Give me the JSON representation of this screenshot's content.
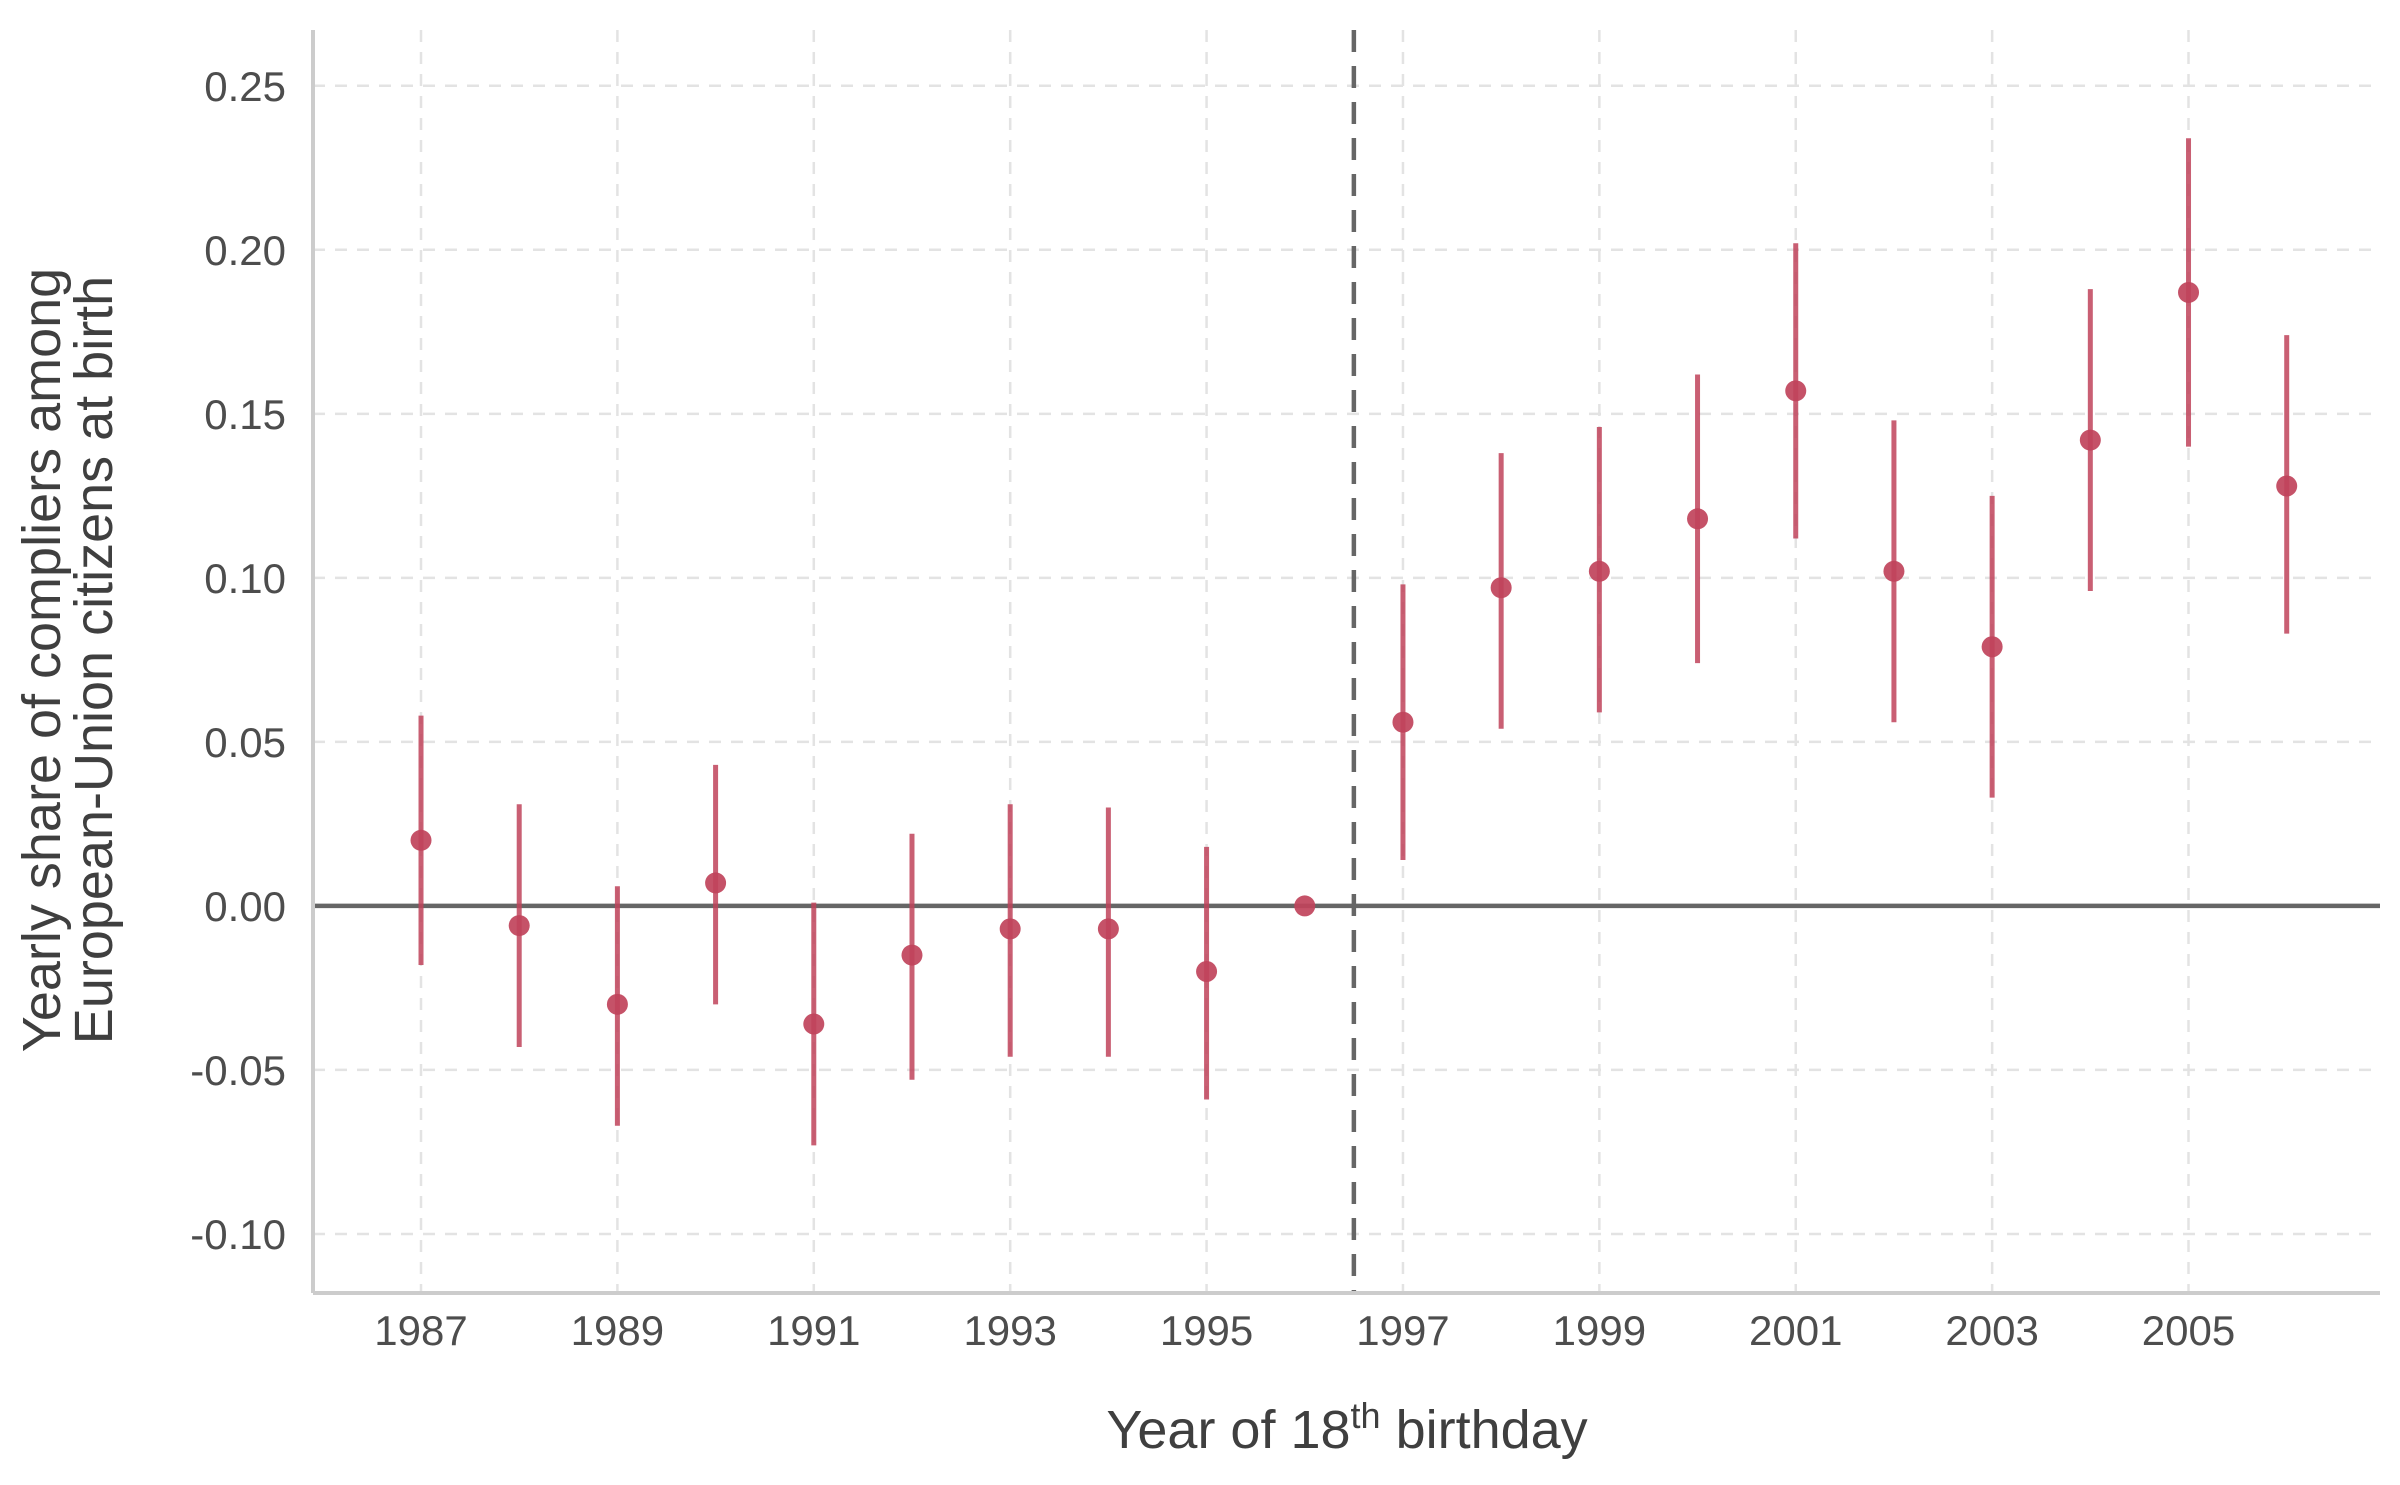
{
  "chart_data": {
    "type": "scatter",
    "subtype": "point-with-error-bars",
    "xlabel": {
      "prefix": "Year of 18",
      "superscript": "th",
      "suffix": " birthday"
    },
    "ylabel": [
      "Yearly share of compliers among",
      "European-Union citizens at birth"
    ],
    "xlim": [
      1985.9,
      2006.95
    ],
    "ylim": [
      -0.118,
      0.267
    ],
    "x_ticks": [
      1987,
      1989,
      1991,
      1993,
      1995,
      1997,
      1999,
      2001,
      2003,
      2005
    ],
    "y_ticks": [
      {
        "value": -0.1,
        "label": "-0.10"
      },
      {
        "value": -0.05,
        "label": "-0.05"
      },
      {
        "value": 0.0,
        "label": "0.00"
      },
      {
        "value": 0.05,
        "label": "0.05"
      },
      {
        "value": 0.1,
        "label": "0.10"
      },
      {
        "value": 0.15,
        "label": "0.15"
      },
      {
        "value": 0.2,
        "label": "0.20"
      },
      {
        "value": 0.25,
        "label": "0.25"
      }
    ],
    "reference_lines": {
      "horizontal_at_y": 0.0,
      "vertical_dashed_at_x": 1996.5
    },
    "grid": "dashed major gridlines",
    "colors": {
      "points": "#c0435b",
      "reference": "#666666",
      "grid": "#e3e3e3",
      "axis": "#cccccc"
    },
    "series": [
      {
        "points": [
          {
            "x": 1987,
            "y": 0.02,
            "lo": -0.018,
            "hi": 0.058
          },
          {
            "x": 1988,
            "y": -0.006,
            "lo": -0.043,
            "hi": 0.031
          },
          {
            "x": 1989,
            "y": -0.03,
            "lo": -0.067,
            "hi": 0.006
          },
          {
            "x": 1990,
            "y": 0.007,
            "lo": -0.03,
            "hi": 0.043
          },
          {
            "x": 1991,
            "y": -0.036,
            "lo": -0.073,
            "hi": 0.001
          },
          {
            "x": 1992,
            "y": -0.015,
            "lo": -0.053,
            "hi": 0.022
          },
          {
            "x": 1993,
            "y": -0.007,
            "lo": -0.046,
            "hi": 0.031
          },
          {
            "x": 1994,
            "y": -0.007,
            "lo": -0.046,
            "hi": 0.03
          },
          {
            "x": 1995,
            "y": -0.02,
            "lo": -0.059,
            "hi": 0.018
          },
          {
            "x": 1996,
            "y": 0.0,
            "lo": 0.0,
            "hi": 0.0
          },
          {
            "x": 1997,
            "y": 0.056,
            "lo": 0.014,
            "hi": 0.098
          },
          {
            "x": 1998,
            "y": 0.097,
            "lo": 0.054,
            "hi": 0.138
          },
          {
            "x": 1999,
            "y": 0.102,
            "lo": 0.059,
            "hi": 0.146
          },
          {
            "x": 2000,
            "y": 0.118,
            "lo": 0.074,
            "hi": 0.162
          },
          {
            "x": 2001,
            "y": 0.157,
            "lo": 0.112,
            "hi": 0.202
          },
          {
            "x": 2002,
            "y": 0.102,
            "lo": 0.056,
            "hi": 0.148
          },
          {
            "x": 2003,
            "y": 0.079,
            "lo": 0.033,
            "hi": 0.125
          },
          {
            "x": 2004,
            "y": 0.142,
            "lo": 0.096,
            "hi": 0.188
          },
          {
            "x": 2005,
            "y": 0.187,
            "lo": 0.14,
            "hi": 0.234
          },
          {
            "x": 2006,
            "y": 0.128,
            "lo": 0.083,
            "hi": 0.174
          }
        ]
      }
    ]
  }
}
